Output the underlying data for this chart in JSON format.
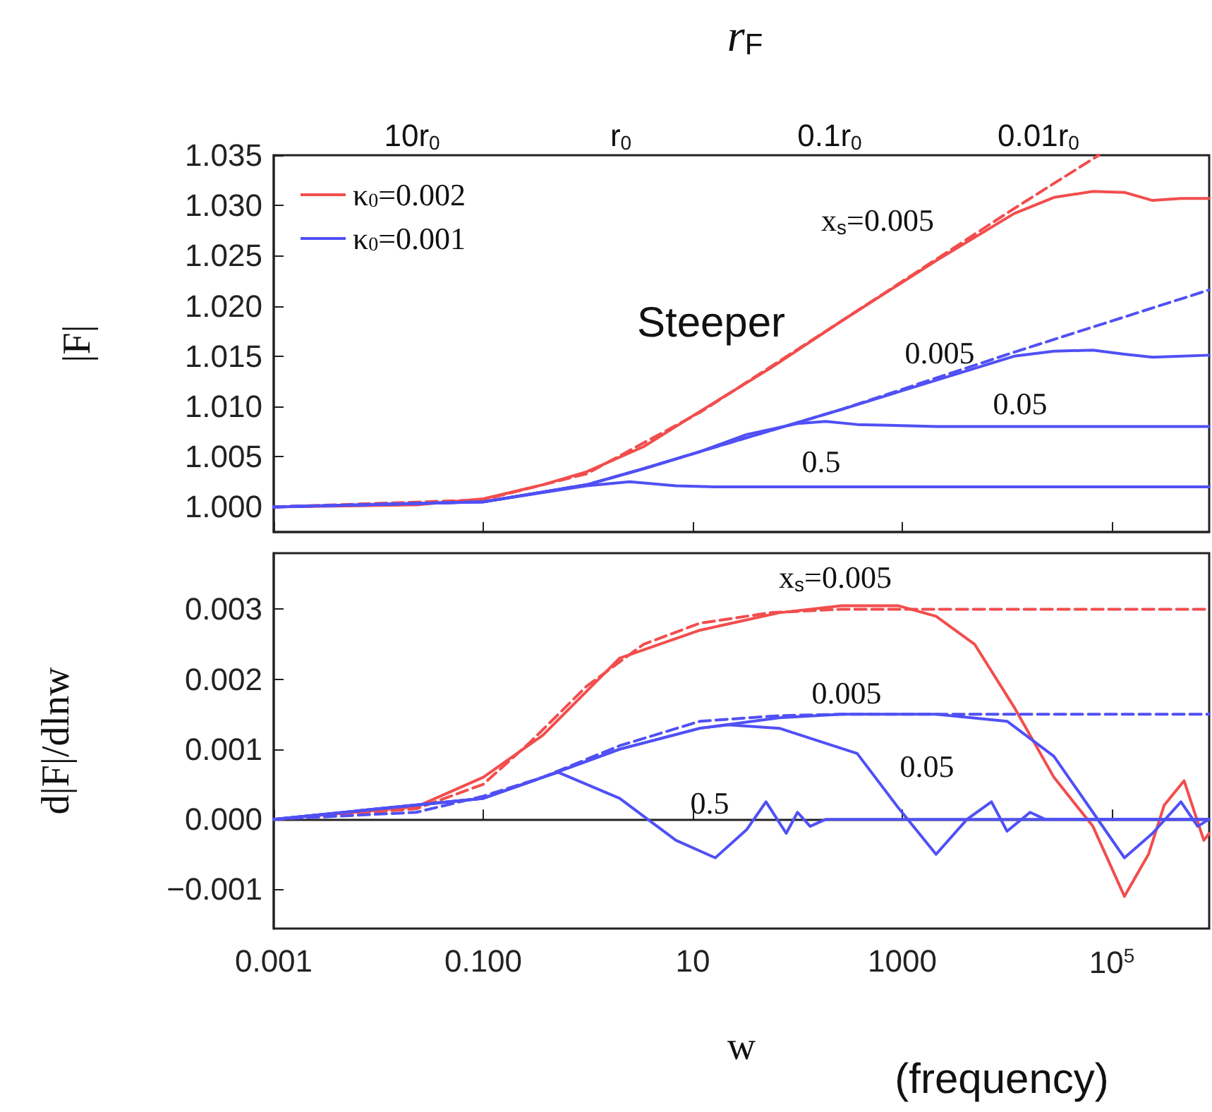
{
  "chart_data": [
    {
      "type": "line",
      "ylabel": "|F|",
      "log": "x",
      "legend": "top left",
      "marker": "none",
      "tick_labels": "y",
      "xlim": [
        0.001,
        850000
      ],
      "xticks": [
        0.001,
        0.1,
        10,
        1000,
        100000
      ],
      "ylim": [
        0.9975,
        1.035
      ],
      "yticks": [
        {
          "value": 1.0,
          "label": "1.000"
        },
        1.005,
        {
          "value": 1.01,
          "label": "1.010"
        },
        1.015,
        {
          "value": 1.02,
          "label": "1.020"
        },
        1.025,
        {
          "value": 1.03,
          "label": "1.030"
        },
        1.035
      ],
      "annotations": [
        "x$_{s}$=0.005",
        "Steeper",
        "0.005",
        "0.05",
        "0.5",
        "r$_{F}$",
        "10r$_{0}$",
        "r$_{0}$",
        "0.1r$_{0}$",
        "0.01r$_{0}$"
      ],
      "series": [
        {
          "name": "κ$_{0}$=0.002",
          "color": "#f24d4d",
          "line_style": "solid",
          "x": [
            0.001,
            0.023,
            0.1,
            0.37,
            0.97,
            3.4,
            11.7,
            55,
            263,
            2100,
            11700,
            28000,
            66000,
            132000,
            245000,
            457000,
            850000
          ],
          "values": [
            1.0,
            1.0002,
            1.0008,
            1.0022,
            1.0035,
            1.006,
            1.0095,
            1.0138,
            1.0185,
            1.0245,
            1.0292,
            1.0308,
            1.0314,
            1.0313,
            1.0305,
            1.0307,
            1.0307
          ]
        },
        {
          "color": "#f24d4d",
          "line_style": "dashed",
          "x": [
            0.001,
            0.1,
            0.97,
            11.7,
            263,
            11700,
            75000
          ],
          "values": [
            1.0,
            1.0007,
            1.0033,
            1.0094,
            1.0185,
            1.0297,
            1.035
          ]
        },
        {
          "name": "κ$_{0}$=0.001",
          "color": "#5050f5",
          "line_style": "solid",
          "x": [
            0.001,
            0.1,
            0.97,
            3.4,
            11.7,
            263,
            11700,
            28000,
            66000,
            132000,
            245000,
            850000
          ],
          "values": [
            1.0,
            1.0005,
            1.0022,
            1.0038,
            1.0055,
            1.0097,
            1.015,
            1.0155,
            1.0156,
            1.0152,
            1.0149,
            1.0151
          ]
        },
        {
          "color": "#5050f5",
          "line_style": "dashed",
          "x": [
            0.001,
            0.1,
            0.97,
            3.4,
            11.7,
            263,
            11700,
            850000
          ],
          "values": [
            1.0,
            1.0005,
            1.0022,
            1.0038,
            1.0055,
            1.0097,
            1.0154,
            1.0216
          ]
        },
        {
          "color": "#5050f5",
          "line_style": "solid",
          "x": [
            0.001,
            0.1,
            0.97,
            3.4,
            11.7,
            32.6,
            100,
            186,
            371,
            2100,
            850000
          ],
          "values": [
            1.0,
            1.0005,
            1.0022,
            1.0038,
            1.0055,
            1.0072,
            1.0083,
            1.0085,
            1.0082,
            1.008,
            1.008
          ]
        },
        {
          "color": "#5050f5",
          "line_style": "solid",
          "x": [
            0.001,
            0.1,
            0.97,
            2.5,
            6.9,
            16.4,
            850000
          ],
          "values": [
            1.0,
            1.0005,
            1.0021,
            1.0025,
            1.0021,
            1.002,
            1.002
          ]
        }
      ]
    },
    {
      "type": "line",
      "xlabel": "w",
      "ylabel": "d|F|/dlnw",
      "log": "x",
      "marker": "none",
      "xlim": [
        0.001,
        850000
      ],
      "xticks": [
        0.001,
        {
          "value": 0.1,
          "label": "0.100"
        },
        10,
        1000,
        {
          "value": 100000,
          "label": "10$^{5}$"
        }
      ],
      "ylim": [
        -0.00156,
        0.0038
      ],
      "yticks": [
        {
          "value": -0.001,
          "label": "−0.001"
        },
        {
          "value": 0,
          "label": "0.000"
        },
        0.001,
        0.002,
        0.003
      ],
      "annotations": [
        "x$_{s}$=0.005",
        "0.005",
        "0.05",
        "0.5",
        "(frequency)"
      ],
      "series": [
        {
          "color": "#f24d4d",
          "line_style": "solid",
          "x": [
            0.001,
            0.023,
            0.1,
            0.37,
            2.0,
            11.7,
            67,
            263,
            910,
            2100,
            4900,
            11700,
            28000,
            66000,
            132000,
            224000,
            316000,
            490000,
            755000,
            850000
          ],
          "values": [
            0,
            0.00018,
            0.0006,
            0.0012,
            0.0023,
            0.0027,
            0.00295,
            0.00305,
            0.00305,
            0.0029,
            0.0025,
            0.0016,
            0.0006,
            -0.0001,
            -0.0011,
            -0.0005,
            0.0002,
            0.00055,
            -0.0003,
            -0.0002
          ]
        },
        {
          "color": "#f24d4d",
          "line_style": "dashed",
          "x": [
            0.001,
            0.023,
            0.1,
            0.28,
            0.97,
            3.4,
            11.7,
            55,
            263,
            850000
          ],
          "values": [
            0,
            0.00015,
            0.0005,
            0.0011,
            0.0019,
            0.0025,
            0.0028,
            0.00295,
            0.003,
            0.003
          ]
        },
        {
          "color": "#5050f5",
          "line_style": "dashed",
          "x": [
            0.001,
            0.023,
            0.1,
            0.37,
            2.0,
            11.7,
            67,
            263,
            850000
          ],
          "values": [
            0,
            0.0001,
            0.00033,
            0.0006,
            0.00105,
            0.0014,
            0.00148,
            0.0015,
            0.0015
          ]
        },
        {
          "color": "#5050f5",
          "line_style": "solid",
          "x": [
            0.001,
            0.1,
            0.37,
            2.0,
            11.7,
            67,
            263,
            2100,
            10000,
            28000,
            66000,
            132000,
            245000,
            457000,
            660000,
            850000
          ],
          "values": [
            0,
            0.0003,
            0.0006,
            0.001,
            0.0013,
            0.00145,
            0.0015,
            0.0015,
            0.0014,
            0.0009,
            0.0001,
            -0.00055,
            -0.0002,
            0.00025,
            -0.0001,
            0
          ]
        },
        {
          "color": "#5050f5",
          "line_style": "solid",
          "x": [
            0.001,
            0.1,
            0.37,
            2.0,
            11.7,
            21.8,
            67,
            371,
            910,
            2100,
            4150,
            7100,
            10000,
            16600,
            23000,
            850000
          ],
          "values": [
            0,
            0.0003,
            0.0006,
            0.001,
            0.0013,
            0.00135,
            0.0013,
            0.00094,
            0.00017,
            -0.0005,
            0,
            0.00025,
            -0.00017,
            0.0001,
            0,
            0
          ]
        },
        {
          "color": "#5050f5",
          "line_style": "solid",
          "x": [
            0.001,
            0.1,
            0.37,
            0.52,
            2.0,
            6.9,
            16.4,
            32.6,
            50,
            78,
            100,
            132,
            186,
            850000
          ],
          "values": [
            0,
            0.0003,
            0.0006,
            0.00067,
            0.0003,
            -0.0003,
            -0.00055,
            -0.00015,
            0.00025,
            -0.0002,
            0.0001,
            -0.0001,
            0,
            0
          ]
        }
      ]
    }
  ]
}
